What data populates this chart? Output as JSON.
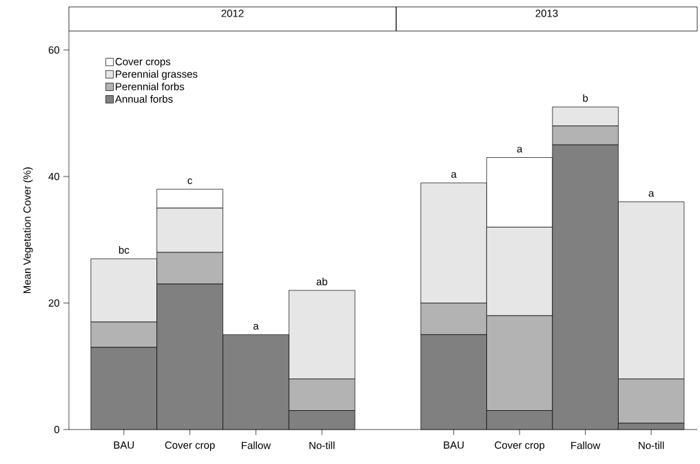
{
  "chart_data": [
    {
      "type": "bar",
      "stacked": true,
      "title": "2012",
      "ylabel": "Mean Vegetation Cover (%)",
      "categories": [
        "BAU",
        "Cover crop",
        "Fallow",
        "No-till"
      ],
      "series": [
        {
          "name": "Annual forbs",
          "color": "#808080",
          "values": [
            13,
            23,
            15,
            3
          ]
        },
        {
          "name": "Perennial forbs",
          "color": "#b3b3b3",
          "values": [
            4,
            5,
            0,
            5
          ]
        },
        {
          "name": "Perennial grasses",
          "color": "#e6e6e6",
          "values": [
            10,
            7,
            0,
            14
          ]
        },
        {
          "name": "Cover crops",
          "color": "#ffffff",
          "values": [
            0,
            3,
            0,
            0
          ]
        }
      ],
      "ylim": [
        0,
        63
      ],
      "yticks": [
        0,
        20,
        40,
        60
      ],
      "legend": "top left",
      "grid": false,
      "annotations": [
        {
          "text": "bc",
          "x": "BAU",
          "y": 27
        },
        {
          "text": "c",
          "x": "Cover crop",
          "y": 38
        },
        {
          "text": "a",
          "x": "Fallow",
          "y": 15
        },
        {
          "text": "ab",
          "x": "No-till",
          "y": 22
        }
      ]
    },
    {
      "type": "bar",
      "stacked": true,
      "title": "2013",
      "categories": [
        "BAU",
        "Cover crop",
        "Fallow",
        "No-till"
      ],
      "series": [
        {
          "color": "#808080",
          "values": [
            15,
            3,
            45,
            1
          ]
        },
        {
          "color": "#b3b3b3",
          "values": [
            5,
            15,
            3,
            7
          ]
        },
        {
          "color": "#e6e6e6",
          "values": [
            19,
            14,
            3,
            28
          ]
        },
        {
          "color": "#ffffff",
          "values": [
            0,
            11,
            0,
            0
          ]
        }
      ],
      "ylim": [
        0,
        63
      ],
      "yticks": [
        0,
        20,
        40,
        60
      ],
      "tick_labels": "x",
      "grid": false,
      "annotations": [
        {
          "text": "a",
          "x": "BAU",
          "y": 39
        },
        {
          "text": "a",
          "x": "Cover crop",
          "y": 43
        },
        {
          "text": "b",
          "x": "Fallow",
          "y": 51
        },
        {
          "text": "a",
          "x": "No-till",
          "y": 36
        }
      ]
    }
  ]
}
